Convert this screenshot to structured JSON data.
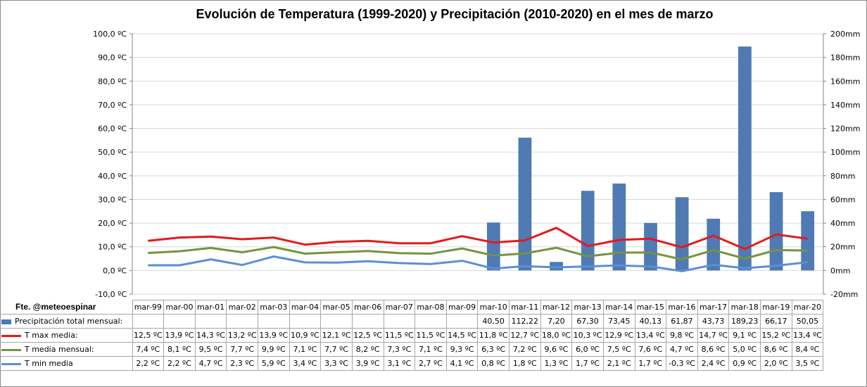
{
  "chart_data": {
    "type": "bar+line",
    "title": "Evolución  de Temperatura  (1999-2020) y Precipitación  (2010-2020) en el mes de marzo",
    "source_label": "Fte. @meteoespinar",
    "categories": [
      "mar-99",
      "mar-00",
      "mar-01",
      "mar-02",
      "mar-03",
      "mar-04",
      "mar-05",
      "mar-06",
      "mar-07",
      "mar-08",
      "mar-09",
      "mar-10",
      "mar-11",
      "mar-12",
      "mar-13",
      "mar-14",
      "mar-15",
      "mar-16",
      "mar-17",
      "mar-18",
      "mar-19",
      "mar-20"
    ],
    "y_left": {
      "min": -10,
      "max": 100,
      "step": 10,
      "tick_labels": [
        "100,0 ºC",
        "90,0 ºC",
        "80,0 ºC",
        "70,0 ºC",
        "60,0 ºC",
        "50,0 ºC",
        "40,0 ºC",
        "30,0 ºC",
        "20,0 ºC",
        "10,0 ºC",
        "0,0 ºC",
        "-10,0 ºC"
      ]
    },
    "y_right": {
      "min": -20,
      "max": 200,
      "step": 20,
      "tick_labels": [
        "200mm",
        "180mm",
        "160mm",
        "140mm",
        "120mm",
        "100mm",
        "80mm",
        "60mm",
        "40mm",
        "20mm",
        "0mm",
        "-20mm"
      ]
    },
    "series": [
      {
        "name": "Precipitación total mensual:",
        "type": "bar",
        "axis": "right",
        "color": "#4f7ab3",
        "values": [
          null,
          null,
          null,
          null,
          null,
          null,
          null,
          null,
          null,
          null,
          null,
          40.5,
          112.22,
          7.2,
          67.3,
          73.45,
          40.13,
          61.87,
          43.73,
          189.23,
          66.17,
          50.05
        ],
        "labels": [
          "",
          "",
          "",
          "",
          "",
          "",
          "",
          "",
          "",
          "",
          "",
          "40,50",
          "112,22",
          "7,20",
          "67,30",
          "73,45",
          "40,13",
          "61,87",
          "43,73",
          "189,23",
          "66,17",
          "50,05"
        ]
      },
      {
        "name": "T max media:",
        "type": "line",
        "axis": "left",
        "color": "#e31a1c",
        "values": [
          12.5,
          13.9,
          14.3,
          13.2,
          13.9,
          10.9,
          12.1,
          12.5,
          11.5,
          11.5,
          14.5,
          11.8,
          12.7,
          18.0,
          10.3,
          12.9,
          13.4,
          9.8,
          14.7,
          9.1,
          15.2,
          13.4
        ],
        "labels": [
          "12,5 ºC",
          "13,9 ºC",
          "14,3 ºC",
          "13,2 ºC",
          "13,9 ºC",
          "10,9 ºC",
          "12,1 ºC",
          "12,5 ºC",
          "11,5 ºC",
          "11,5 ºC",
          "14,5 ºC",
          "11,8 ºC",
          "12,7 ºC",
          "18,0 ºC",
          "10,3 ºC",
          "12,9 ºC",
          "13,4 ºC",
          "9,8 ºC",
          "14,7 ºC",
          "9,1 ºC",
          "15,2 ºC",
          "13,4 ºC"
        ]
      },
      {
        "name": "T media mensual:",
        "type": "line",
        "axis": "left",
        "color": "#77933c",
        "values": [
          7.4,
          8.1,
          9.5,
          7.7,
          9.9,
          7.1,
          7.7,
          8.2,
          7.3,
          7.1,
          9.3,
          6.3,
          7.2,
          9.6,
          6.0,
          7.5,
          7.6,
          4.7,
          8.6,
          5.0,
          8.6,
          8.4
        ],
        "labels": [
          "7,4 ºC",
          "8,1 ºC",
          "9,5 ºC",
          "7,7 ºC",
          "9,9 ºC",
          "7,1 ºC",
          "7,7 ºC",
          "8,2 ºC",
          "7,3 ºC",
          "7,1 ºC",
          "9,3 ºC",
          "6,3 ºC",
          "7,2 ºC",
          "9,6 ºC",
          "6,0 ºC",
          "7,5 ºC",
          "7,6 ºC",
          "4,7 ºC",
          "8,6 ºC",
          "5,0 ºC",
          "8,6 ºC",
          "8,4 ºC"
        ]
      },
      {
        "name": "T min media",
        "type": "line",
        "axis": "left",
        "color": "#5b8fd6",
        "values": [
          2.2,
          2.2,
          4.7,
          2.3,
          5.9,
          3.4,
          3.3,
          3.9,
          3.1,
          2.7,
          4.1,
          0.8,
          1.8,
          1.3,
          1.7,
          2.1,
          1.7,
          -0.3,
          2.4,
          0.9,
          2.0,
          3.5
        ],
        "labels": [
          "2,2 ºC",
          "2,2 ºC",
          "4,7 ºC",
          "2,3 ºC",
          "5,9 ºC",
          "3,4 ºC",
          "3,3 ºC",
          "3,9 ºC",
          "3,1 ºC",
          "2,7 ºC",
          "4,1 ºC",
          "0,8 ºC",
          "1,8 ºC",
          "1,3 ºC",
          "1,7 ºC",
          "2,1 ºC",
          "1,7 ºC",
          "-0,3 ºC",
          "2,4 ºC",
          "0,9 ºC",
          "2,0 ºC",
          "3,5 ºC"
        ]
      }
    ]
  }
}
